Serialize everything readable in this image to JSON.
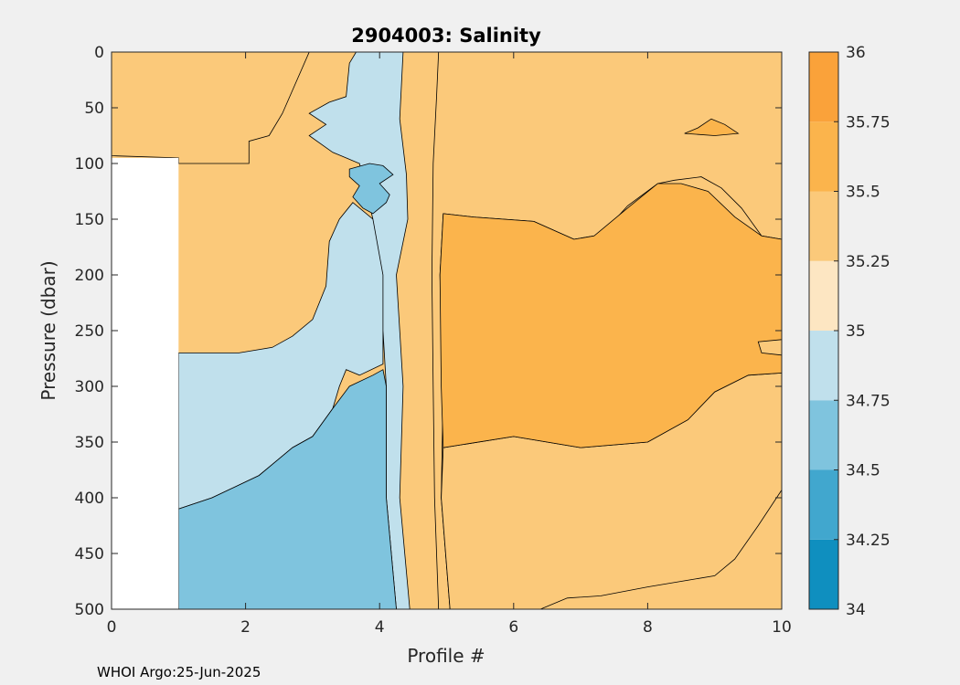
{
  "chart_data": {
    "type": "contour",
    "title": "2904003:  Salinity",
    "xlabel": "Profile #",
    "ylabel": "Pressure (dbar)",
    "xlim": [
      0,
      10
    ],
    "ylim": [
      0,
      500
    ],
    "y_reversed": true,
    "x_ticks": [
      0,
      2,
      4,
      6,
      8,
      10
    ],
    "y_ticks": [
      0,
      50,
      100,
      150,
      200,
      250,
      300,
      350,
      400,
      450,
      500
    ],
    "colorbar": {
      "levels": [
        34,
        34.25,
        34.5,
        34.75,
        35,
        35.25,
        35.5,
        35.75,
        36
      ],
      "tick_labels": [
        "34",
        "34.25",
        "34.5",
        "34.75",
        "35",
        "35.25",
        "35.5",
        "35.75",
        "36"
      ],
      "colors": [
        "#0f8fbf",
        "#41a7ce",
        "#7fc4de",
        "#c0e0ec",
        "#fde6c2",
        "#fbc97a",
        "#fbb44c",
        "#faa23a"
      ]
    },
    "no_data_region": {
      "x": [
        0,
        1
      ],
      "pressure": [
        95,
        500
      ]
    },
    "regions": [
      {
        "range": "35.25-35.5",
        "points": [
          [
            0,
            0
          ],
          [
            2.95,
            0
          ],
          [
            2.55,
            55
          ],
          [
            2.35,
            75
          ],
          [
            2.05,
            80
          ],
          [
            2.05,
            100
          ],
          [
            1.0,
            100
          ],
          [
            1.0,
            95
          ],
          [
            0,
            93
          ]
        ]
      },
      {
        "range": "35.25-35.5",
        "points": [
          [
            4.88,
            0
          ],
          [
            10,
            0
          ],
          [
            10,
            168
          ],
          [
            9.7,
            165
          ],
          [
            9.4,
            140
          ],
          [
            9.1,
            122
          ],
          [
            8.8,
            112
          ],
          [
            8.4,
            115
          ],
          [
            8.15,
            118
          ],
          [
            7.7,
            138
          ],
          [
            7.4,
            158
          ],
          [
            7.2,
            165
          ],
          [
            6.9,
            168
          ],
          [
            6.3,
            152
          ],
          [
            5.4,
            148
          ],
          [
            4.95,
            145
          ],
          [
            4.9,
            200
          ],
          [
            4.95,
            300
          ],
          [
            4.92,
            400
          ],
          [
            5.05,
            500
          ],
          [
            4.88,
            500
          ],
          [
            4.82,
            400
          ],
          [
            4.8,
            300
          ],
          [
            4.78,
            200
          ],
          [
            4.8,
            100
          ],
          [
            4.85,
            40
          ]
        ]
      },
      {
        "range": "35.25-35.5",
        "points": [
          [
            4.95,
            355
          ],
          [
            6.0,
            345
          ],
          [
            7.0,
            355
          ],
          [
            8.0,
            350
          ],
          [
            8.6,
            330
          ],
          [
            9.0,
            305
          ],
          [
            9.5,
            290
          ],
          [
            10,
            288
          ],
          [
            10,
            393
          ],
          [
            9.65,
            425
          ],
          [
            9.3,
            455
          ],
          [
            9.0,
            470
          ],
          [
            8.5,
            475
          ],
          [
            8.0,
            480
          ],
          [
            7.3,
            488
          ],
          [
            6.8,
            490
          ],
          [
            6.4,
            500
          ],
          [
            5.05,
            500
          ],
          [
            4.92,
            400
          ]
        ]
      },
      {
        "range": "35.5-35.75",
        "points": [
          [
            4.95,
            145
          ],
          [
            5.4,
            148
          ],
          [
            6.3,
            152
          ],
          [
            6.9,
            168
          ],
          [
            7.2,
            165
          ],
          [
            7.7,
            140
          ],
          [
            8.15,
            118
          ],
          [
            8.5,
            118
          ],
          [
            8.9,
            125
          ],
          [
            9.3,
            148
          ],
          [
            9.7,
            165
          ],
          [
            10,
            168
          ],
          [
            10,
            258
          ],
          [
            9.65,
            260
          ],
          [
            9.7,
            270
          ],
          [
            10,
            272
          ],
          [
            10,
            288
          ],
          [
            9.5,
            290
          ],
          [
            9.0,
            305
          ],
          [
            8.6,
            330
          ],
          [
            8.0,
            350
          ],
          [
            7.0,
            355
          ],
          [
            6.0,
            345
          ],
          [
            4.95,
            355
          ],
          [
            4.92,
            300
          ],
          [
            4.9,
            200
          ]
        ]
      },
      {
        "range": "35.5-35.75",
        "points": [
          [
            8.95,
            60
          ],
          [
            9.15,
            65
          ],
          [
            9.35,
            73
          ],
          [
            9.0,
            75
          ],
          [
            8.55,
            73
          ],
          [
            8.75,
            68
          ]
        ]
      },
      {
        "range": "34.75-35",
        "points": [
          [
            3.65,
            0
          ],
          [
            4.35,
            0
          ],
          [
            4.3,
            60
          ],
          [
            4.4,
            110
          ],
          [
            4.42,
            150
          ],
          [
            4.25,
            200
          ],
          [
            4.3,
            250
          ],
          [
            4.35,
            300
          ],
          [
            4.3,
            400
          ],
          [
            4.45,
            500
          ],
          [
            4.25,
            500
          ],
          [
            4.1,
            400
          ],
          [
            4.1,
            300
          ],
          [
            4.05,
            250
          ],
          [
            4.05,
            200
          ],
          [
            3.9,
            150
          ],
          [
            3.6,
            135
          ],
          [
            3.4,
            150
          ],
          [
            3.25,
            170
          ],
          [
            3.2,
            210
          ],
          [
            3.0,
            240
          ],
          [
            2.7,
            255
          ],
          [
            2.4,
            265
          ],
          [
            1.9,
            270
          ],
          [
            1.0,
            270
          ],
          [
            1.0,
            410
          ],
          [
            1.5,
            400
          ],
          [
            2.2,
            380
          ],
          [
            2.7,
            355
          ],
          [
            3.0,
            345
          ],
          [
            3.3,
            320
          ],
          [
            3.4,
            300
          ],
          [
            3.5,
            285
          ],
          [
            3.7,
            290
          ],
          [
            4.05,
            280
          ],
          [
            4.05,
            200
          ],
          [
            3.9,
            150
          ],
          [
            3.7,
            100
          ],
          [
            3.3,
            90
          ],
          [
            2.95,
            75
          ],
          [
            3.2,
            65
          ],
          [
            2.95,
            55
          ],
          [
            3.25,
            45
          ],
          [
            3.5,
            40
          ],
          [
            3.55,
            10
          ]
        ]
      },
      {
        "range": "34.5-34.75",
        "points": [
          [
            1.0,
            410
          ],
          [
            1.5,
            400
          ],
          [
            2.2,
            380
          ],
          [
            2.7,
            355
          ],
          [
            3.0,
            345
          ],
          [
            3.3,
            320
          ],
          [
            3.55,
            300
          ],
          [
            3.9,
            290
          ],
          [
            4.05,
            285
          ],
          [
            4.1,
            300
          ],
          [
            4.1,
            400
          ],
          [
            4.25,
            500
          ],
          [
            1.0,
            500
          ]
        ]
      },
      {
        "range": "34.5-34.75",
        "points": [
          [
            3.55,
            105
          ],
          [
            3.85,
            100
          ],
          [
            4.05,
            102
          ],
          [
            4.2,
            110
          ],
          [
            4.0,
            118
          ],
          [
            4.15,
            128
          ],
          [
            4.1,
            135
          ],
          [
            3.9,
            145
          ],
          [
            3.75,
            140
          ],
          [
            3.6,
            130
          ],
          [
            3.7,
            120
          ],
          [
            3.55,
            112
          ]
        ]
      }
    ]
  },
  "footer_text": "WHOI Argo:25-Jun-2025"
}
